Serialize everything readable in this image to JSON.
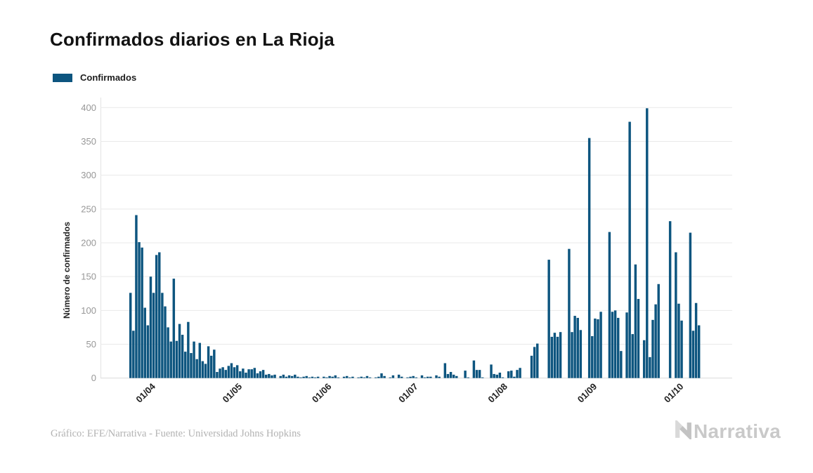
{
  "header": {
    "title": "Confirmados diarios en La Rioja"
  },
  "legend": {
    "label": "Confirmados",
    "swatch_color": "#0d557f"
  },
  "footer": {
    "credit": "Gráfico: EFE/Narrativa - Fuente: Universidad Johns Hopkins"
  },
  "brand": {
    "name": "Narrativa",
    "icon": "narrativa-n-mark",
    "text_color": "#c9c9c9"
  },
  "chart_data": {
    "type": "bar",
    "title": "Confirmados diarios en La Rioja",
    "xlabel": "",
    "ylabel": "Número de confirmados",
    "series_name": "Confirmados",
    "bar_color": "#0d557f",
    "grid": "horizontal",
    "legend_position": "top-left",
    "ylim": [
      0,
      400
    ],
    "yticks": [
      0,
      50,
      100,
      150,
      200,
      250,
      300,
      350,
      400
    ],
    "xtick_labels": [
      "01/04",
      "01/05",
      "01/06",
      "01/07",
      "01/08",
      "01/09",
      "01/10"
    ],
    "date_format": "dd/mm",
    "dates": [
      "26/03",
      "27/03",
      "28/03",
      "29/03",
      "30/03",
      "31/03",
      "01/04",
      "02/04",
      "03/04",
      "04/04",
      "05/04",
      "06/04",
      "07/04",
      "08/04",
      "09/04",
      "10/04",
      "11/04",
      "12/04",
      "13/04",
      "14/04",
      "15/04",
      "16/04",
      "17/04",
      "18/04",
      "19/04",
      "20/04",
      "21/04",
      "22/04",
      "23/04",
      "24/04",
      "25/04",
      "26/04",
      "27/04",
      "28/04",
      "29/04",
      "30/04",
      "01/05",
      "02/05",
      "03/05",
      "04/05",
      "05/05",
      "06/05",
      "07/05",
      "08/05",
      "09/05",
      "10/05",
      "11/05",
      "12/05",
      "13/05",
      "14/05",
      "15/05",
      "16/05",
      "17/05",
      "18/05",
      "19/05",
      "20/05",
      "21/05",
      "22/05",
      "23/05",
      "24/05",
      "25/05",
      "26/05",
      "27/05",
      "28/05",
      "29/05",
      "30/05",
      "31/05",
      "01/06",
      "02/06",
      "03/06",
      "04/06",
      "05/06",
      "06/06",
      "07/06",
      "08/06",
      "09/06",
      "10/06",
      "11/06",
      "12/06",
      "13/06",
      "14/06",
      "15/06",
      "16/06",
      "17/06",
      "18/06",
      "19/06",
      "20/06",
      "21/06",
      "22/06",
      "23/06",
      "24/06",
      "25/06",
      "26/06",
      "27/06",
      "28/06",
      "29/06",
      "30/06",
      "01/07",
      "02/07",
      "03/07",
      "04/07",
      "05/07",
      "06/07",
      "07/07",
      "08/07",
      "09/07",
      "10/07",
      "11/07",
      "12/07",
      "13/07",
      "14/07",
      "15/07",
      "16/07",
      "17/07",
      "18/07",
      "19/07",
      "20/07",
      "21/07",
      "22/07",
      "23/07",
      "24/07",
      "25/07",
      "26/07",
      "27/07",
      "28/07",
      "29/07",
      "30/07",
      "31/07",
      "01/08",
      "02/08",
      "03/08",
      "04/08",
      "05/08",
      "06/08",
      "07/08",
      "08/08",
      "09/08",
      "10/08",
      "11/08",
      "12/08",
      "13/08",
      "14/08",
      "15/08",
      "16/08",
      "17/08",
      "18/08",
      "19/08",
      "20/08",
      "21/08",
      "22/08",
      "23/08",
      "24/08",
      "25/08",
      "26/08",
      "27/08",
      "28/08",
      "29/08",
      "30/08",
      "31/08",
      "01/09",
      "02/09",
      "03/09",
      "04/09",
      "05/09",
      "06/09",
      "07/09",
      "08/09",
      "09/09",
      "10/09",
      "11/09",
      "12/09",
      "13/09",
      "14/09",
      "15/09",
      "16/09",
      "17/09",
      "18/09",
      "19/09",
      "20/09",
      "21/09",
      "22/09",
      "23/09",
      "24/09",
      "25/09",
      "26/09",
      "27/09",
      "28/09",
      "29/09",
      "30/09",
      "01/10",
      "02/10",
      "03/10",
      "04/10",
      "05/10",
      "06/10",
      "07/10",
      "08/10",
      "09/10"
    ],
    "values": [
      126,
      70,
      241,
      201,
      193,
      104,
      78,
      150,
      126,
      182,
      186,
      126,
      106,
      75,
      54,
      147,
      55,
      80,
      64,
      39,
      83,
      37,
      54,
      28,
      52,
      25,
      21,
      47,
      33,
      42,
      9,
      14,
      16,
      12,
      18,
      22,
      16,
      19,
      10,
      14,
      8,
      13,
      13,
      15,
      7,
      10,
      12,
      5,
      6,
      4,
      5,
      0,
      3,
      5,
      2,
      4,
      3,
      5,
      2,
      1,
      2,
      3,
      1,
      2,
      1,
      2,
      0,
      2,
      1,
      3,
      2,
      4,
      1,
      0,
      2,
      3,
      1,
      2,
      0,
      1,
      2,
      1,
      3,
      1,
      0,
      1,
      2,
      7,
      3,
      0,
      1,
      4,
      0,
      5,
      2,
      0,
      1,
      2,
      3,
      1,
      0,
      4,
      1,
      2,
      2,
      0,
      4,
      2,
      0,
      22,
      6,
      9,
      5,
      3,
      0,
      0,
      11,
      1,
      0,
      26,
      12,
      12,
      1,
      0,
      0,
      20,
      6,
      5,
      8,
      1,
      0,
      10,
      11,
      2,
      12,
      15,
      0,
      0,
      0,
      33,
      46,
      51,
      0,
      0,
      0,
      175,
      61,
      67,
      61,
      68,
      0,
      0,
      191,
      68,
      92,
      89,
      71,
      0,
      0,
      355,
      62,
      88,
      87,
      98,
      0,
      0,
      216,
      98,
      100,
      89,
      40,
      0,
      97,
      379,
      65,
      168,
      117,
      0,
      56,
      399,
      31,
      86,
      109,
      139,
      0,
      0,
      0,
      232,
      0,
      186,
      110,
      85,
      0,
      0,
      215,
      70,
      111,
      78
    ]
  }
}
